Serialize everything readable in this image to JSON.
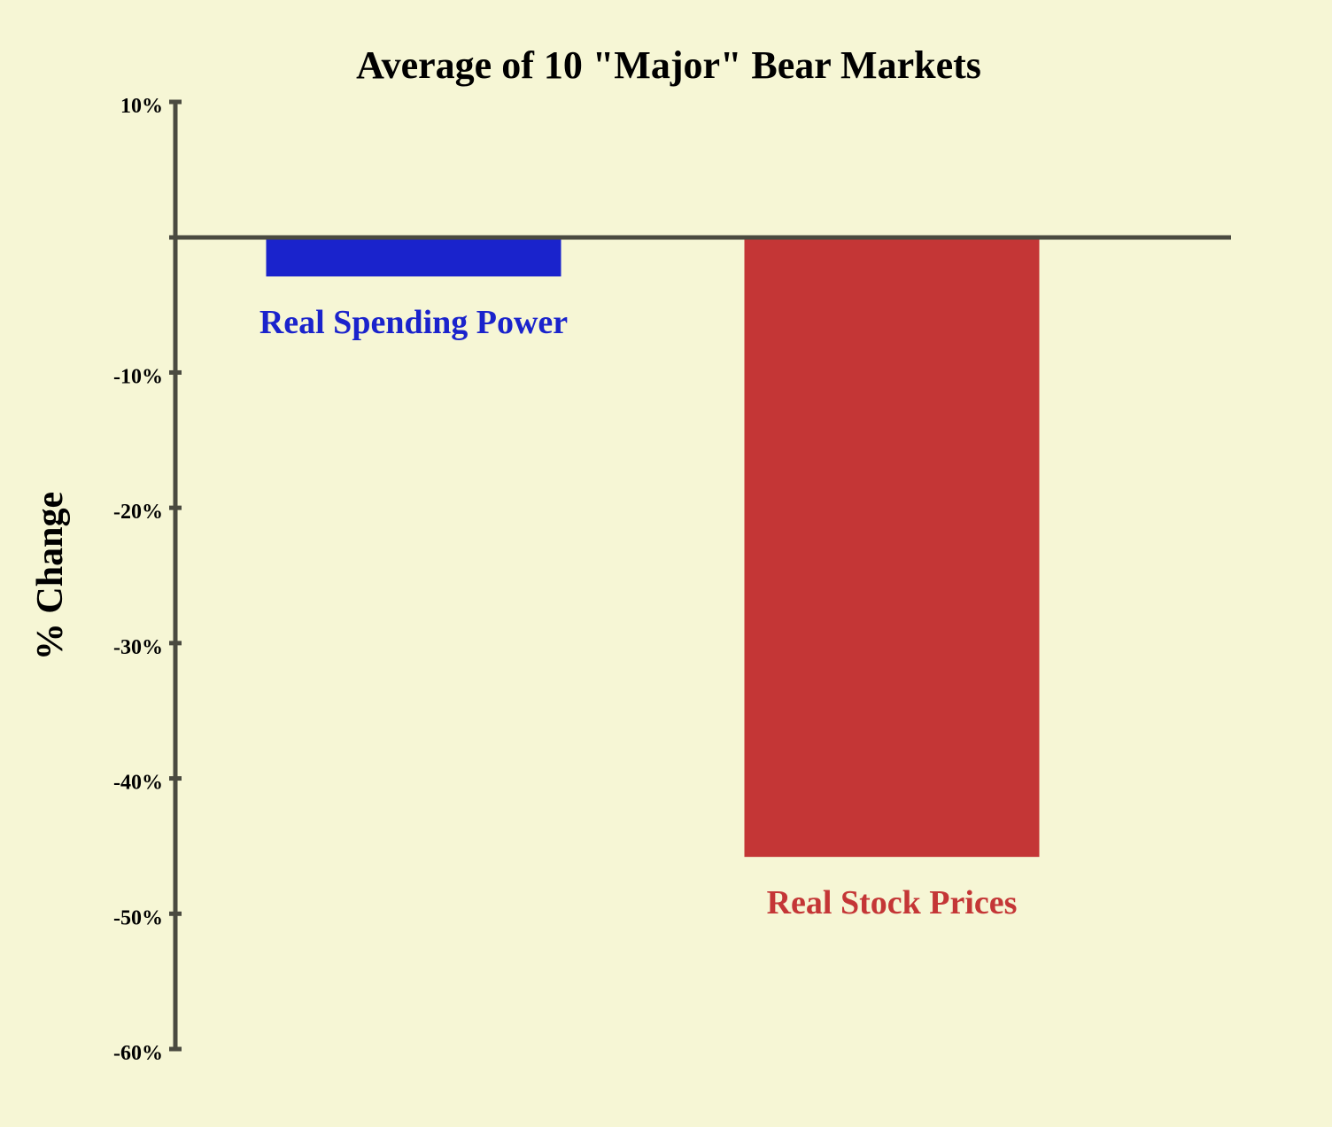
{
  "chart_data": {
    "type": "bar",
    "title": "Average of 10 \"Major\" Bear Markets",
    "xlabel": "",
    "ylabel": "% Change",
    "ylim": [
      -60,
      10
    ],
    "yticks": [
      10,
      -10,
      -20,
      -30,
      -40,
      -50,
      -60
    ],
    "ytick_labels": [
      "10%",
      "-10%",
      "-20%",
      "-30%",
      "-40%",
      "-50%",
      "-60%"
    ],
    "grid": false,
    "categories": [
      "Real Spending Power",
      "Real Stock Prices"
    ],
    "values": [
      -2.9,
      -45.8
    ],
    "colors": [
      "#1a23cc",
      "#c43636"
    ],
    "axis_color": "#4a4a40",
    "background": "#f6f6d5"
  }
}
